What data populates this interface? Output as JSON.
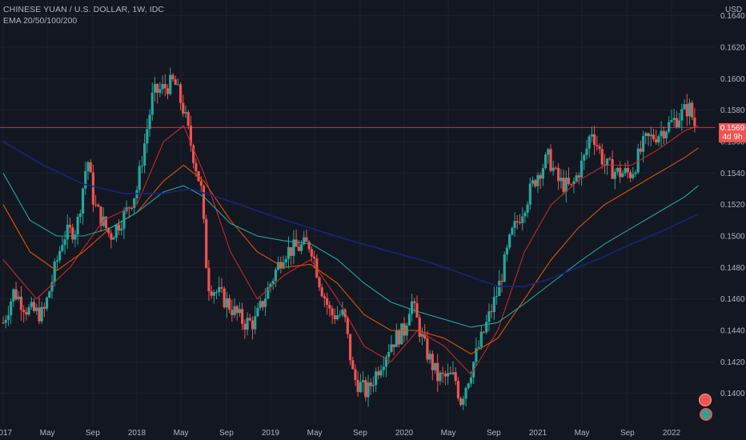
{
  "legend": {
    "title": "CHINESE YUAN / U.S. DOLLAR, 1W, IDC",
    "indicator": "EMA 20/50/100/200"
  },
  "price_axis": {
    "unit": "USD"
  },
  "last_price": {
    "value": "0.1569",
    "countdown": "4d 9h"
  },
  "colors": {
    "background": "#131722",
    "grid": "#1e222d",
    "up": "#26a69a",
    "down": "#ef5350",
    "ema20": "#c62828",
    "ema50": "#e65100",
    "ema100": "#26a69a",
    "ema200": "#1a237e",
    "axis_text": "#b2b5be"
  },
  "chart_data": {
    "type": "candlestick",
    "symbol": "CHINESE YUAN / U.S. DOLLAR",
    "interval": "1W",
    "source": "IDC",
    "ylim": [
      0.138,
      0.165
    ],
    "y_ticks": [
      "0.1640",
      "0.1620",
      "0.1600",
      "0.1580",
      "0.1560",
      "0.1540",
      "0.1520",
      "0.1500",
      "0.1480",
      "0.1460",
      "0.1440",
      "0.1420",
      "0.1400"
    ],
    "x_ticks": [
      "2017",
      "May",
      "Sep",
      "2018",
      "May",
      "Sep",
      "2019",
      "May",
      "Sep",
      "2020",
      "May",
      "Sep",
      "2021",
      "May",
      "Sep",
      "2022"
    ],
    "x_range": [
      2017.0,
      2022.3
    ],
    "price_path": [
      [
        2017.0,
        0.1445
      ],
      [
        2017.08,
        0.1465
      ],
      [
        2017.18,
        0.1453
      ],
      [
        2017.3,
        0.145
      ],
      [
        2017.36,
        0.147
      ],
      [
        2017.45,
        0.15
      ],
      [
        2017.55,
        0.1505
      ],
      [
        2017.63,
        0.155
      ],
      [
        2017.68,
        0.152
      ],
      [
        2017.8,
        0.15
      ],
      [
        2017.92,
        0.1515
      ],
      [
        2018.0,
        0.153
      ],
      [
        2018.12,
        0.159
      ],
      [
        2018.28,
        0.1598
      ],
      [
        2018.35,
        0.158
      ],
      [
        2018.4,
        0.156
      ],
      [
        2018.48,
        0.153
      ],
      [
        2018.53,
        0.147
      ],
      [
        2018.65,
        0.146
      ],
      [
        2018.8,
        0.1445
      ],
      [
        2018.88,
        0.1445
      ],
      [
        2019.0,
        0.147
      ],
      [
        2019.1,
        0.149
      ],
      [
        2019.3,
        0.1495
      ],
      [
        2019.37,
        0.147
      ],
      [
        2019.45,
        0.145
      ],
      [
        2019.55,
        0.145
      ],
      [
        2019.62,
        0.141
      ],
      [
        2019.72,
        0.14
      ],
      [
        2019.8,
        0.1415
      ],
      [
        2019.9,
        0.1432
      ],
      [
        2020.0,
        0.144
      ],
      [
        2020.05,
        0.146
      ],
      [
        2020.15,
        0.143
      ],
      [
        2020.25,
        0.141
      ],
      [
        2020.38,
        0.141
      ],
      [
        2020.42,
        0.1395
      ],
      [
        2020.5,
        0.1415
      ],
      [
        2020.6,
        0.144
      ],
      [
        2020.7,
        0.1465
      ],
      [
        2020.8,
        0.15
      ],
      [
        2020.9,
        0.152
      ],
      [
        2021.0,
        0.154
      ],
      [
        2021.08,
        0.155
      ],
      [
        2021.15,
        0.1535
      ],
      [
        2021.25,
        0.153
      ],
      [
        2021.35,
        0.155
      ],
      [
        2021.4,
        0.1568
      ],
      [
        2021.5,
        0.1545
      ],
      [
        2021.6,
        0.154
      ],
      [
        2021.7,
        0.154
      ],
      [
        2021.8,
        0.156
      ],
      [
        2021.9,
        0.1565
      ],
      [
        2022.0,
        0.1572
      ],
      [
        2022.08,
        0.1578
      ],
      [
        2022.13,
        0.1582
      ],
      [
        2022.18,
        0.1569
      ]
    ],
    "ema_series": [
      {
        "name": "EMA 20",
        "color": "#c62828",
        "points": [
          [
            2017.0,
            0.1485
          ],
          [
            2017.25,
            0.146
          ],
          [
            2017.5,
            0.148
          ],
          [
            2017.75,
            0.151
          ],
          [
            2018.0,
            0.152
          ],
          [
            2018.2,
            0.156
          ],
          [
            2018.35,
            0.157
          ],
          [
            2018.5,
            0.154
          ],
          [
            2018.7,
            0.149
          ],
          [
            2018.9,
            0.146
          ],
          [
            2019.1,
            0.1475
          ],
          [
            2019.3,
            0.1485
          ],
          [
            2019.5,
            0.146
          ],
          [
            2019.7,
            0.143
          ],
          [
            2019.9,
            0.142
          ],
          [
            2020.1,
            0.144
          ],
          [
            2020.3,
            0.143
          ],
          [
            2020.5,
            0.1412
          ],
          [
            2020.7,
            0.144
          ],
          [
            2020.9,
            0.149
          ],
          [
            2021.1,
            0.152
          ],
          [
            2021.3,
            0.1535
          ],
          [
            2021.5,
            0.1545
          ],
          [
            2021.7,
            0.1545
          ],
          [
            2021.9,
            0.1555
          ],
          [
            2022.1,
            0.1567
          ],
          [
            2022.2,
            0.157
          ]
        ]
      },
      {
        "name": "EMA 50",
        "color": "#e65100",
        "points": [
          [
            2017.0,
            0.152
          ],
          [
            2017.2,
            0.149
          ],
          [
            2017.4,
            0.1478
          ],
          [
            2017.6,
            0.149
          ],
          [
            2017.8,
            0.1505
          ],
          [
            2018.0,
            0.1515
          ],
          [
            2018.2,
            0.1535
          ],
          [
            2018.35,
            0.1545
          ],
          [
            2018.5,
            0.1535
          ],
          [
            2018.7,
            0.151
          ],
          [
            2018.9,
            0.149
          ],
          [
            2019.1,
            0.148
          ],
          [
            2019.3,
            0.1482
          ],
          [
            2019.5,
            0.147
          ],
          [
            2019.7,
            0.145
          ],
          [
            2019.9,
            0.144
          ],
          [
            2020.1,
            0.144
          ],
          [
            2020.3,
            0.1435
          ],
          [
            2020.5,
            0.1425
          ],
          [
            2020.7,
            0.1435
          ],
          [
            2020.9,
            0.146
          ],
          [
            2021.1,
            0.1485
          ],
          [
            2021.3,
            0.1505
          ],
          [
            2021.5,
            0.152
          ],
          [
            2021.7,
            0.153
          ],
          [
            2021.9,
            0.154
          ],
          [
            2022.1,
            0.155
          ],
          [
            2022.2,
            0.1556
          ]
        ]
      },
      {
        "name": "EMA 100",
        "color": "#26a69a",
        "points": [
          [
            2017.0,
            0.154
          ],
          [
            2017.2,
            0.151
          ],
          [
            2017.4,
            0.15
          ],
          [
            2017.6,
            0.15
          ],
          [
            2017.8,
            0.1505
          ],
          [
            2018.0,
            0.1515
          ],
          [
            2018.2,
            0.1528
          ],
          [
            2018.35,
            0.1532
          ],
          [
            2018.5,
            0.1525
          ],
          [
            2018.7,
            0.1508
          ],
          [
            2018.9,
            0.15
          ],
          [
            2019.1,
            0.1497
          ],
          [
            2019.3,
            0.1495
          ],
          [
            2019.5,
            0.1485
          ],
          [
            2019.7,
            0.147
          ],
          [
            2019.9,
            0.1458
          ],
          [
            2020.1,
            0.1452
          ],
          [
            2020.3,
            0.1447
          ],
          [
            2020.5,
            0.1442
          ],
          [
            2020.7,
            0.1445
          ],
          [
            2020.9,
            0.1457
          ],
          [
            2021.1,
            0.147
          ],
          [
            2021.3,
            0.1483
          ],
          [
            2021.5,
            0.1495
          ],
          [
            2021.7,
            0.1505
          ],
          [
            2021.9,
            0.1515
          ],
          [
            2022.1,
            0.1525
          ],
          [
            2022.2,
            0.1532
          ]
        ]
      },
      {
        "name": "EMA 200",
        "color": "#1a237e",
        "points": [
          [
            2017.0,
            0.156
          ],
          [
            2017.3,
            0.1545
          ],
          [
            2017.6,
            0.1533
          ],
          [
            2017.9,
            0.1527
          ],
          [
            2018.2,
            0.1527
          ],
          [
            2018.4,
            0.153
          ],
          [
            2018.7,
            0.1522
          ],
          [
            2019.0,
            0.1513
          ],
          [
            2019.3,
            0.1505
          ],
          [
            2019.6,
            0.1497
          ],
          [
            2019.9,
            0.149
          ],
          [
            2020.2,
            0.1483
          ],
          [
            2020.5,
            0.1474
          ],
          [
            2020.7,
            0.1468
          ],
          [
            2020.9,
            0.1468
          ],
          [
            2021.1,
            0.1473
          ],
          [
            2021.3,
            0.148
          ],
          [
            2021.5,
            0.1487
          ],
          [
            2021.7,
            0.1495
          ],
          [
            2021.9,
            0.1502
          ],
          [
            2022.1,
            0.151
          ],
          [
            2022.2,
            0.1514
          ]
        ]
      }
    ]
  }
}
